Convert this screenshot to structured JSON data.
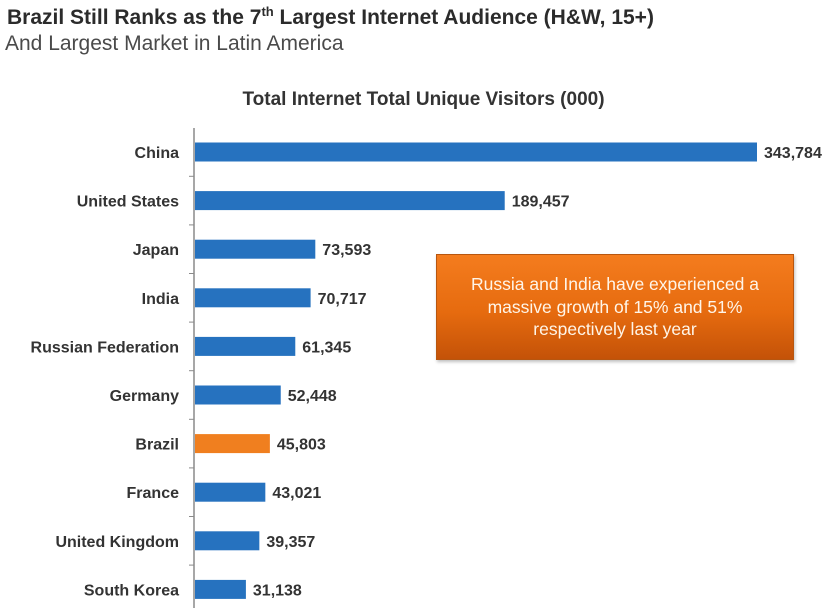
{
  "header": {
    "title_prefix": "Brazil Still Ranks as the 7",
    "title_sup": "th",
    "title_suffix": " Largest Internet Audience (H&W, 15+)",
    "subtitle": "And Largest Market in Latin America"
  },
  "callout": {
    "text": "Russia and India have experienced a massive growth of 15% and 51% respectively last year"
  },
  "colors": {
    "bar": "#2672bf",
    "highlight": "#f07f1f",
    "callout": "#e8700f"
  },
  "chart_data": {
    "type": "bar",
    "orientation": "horizontal",
    "title": "Total Internet Total Unique Visitors (000)",
    "categories": [
      "China",
      "United States",
      "Japan",
      "India",
      "Russian Federation",
      "Germany",
      "Brazil",
      "France",
      "United Kingdom",
      "South Korea"
    ],
    "values": [
      343784,
      189457,
      73593,
      70717,
      61345,
      52448,
      45803,
      43021,
      39357,
      31138
    ],
    "value_labels": [
      "343,784",
      "189,457",
      "73,593",
      "70,717",
      "61,345",
      "52,448",
      "45,803",
      "43,021",
      "39,357",
      "31,138"
    ],
    "highlight_category": "Brazil",
    "xlabel": "",
    "ylabel": "",
    "xlim": [
      0,
      343784
    ],
    "grid": false,
    "legend": "none"
  }
}
